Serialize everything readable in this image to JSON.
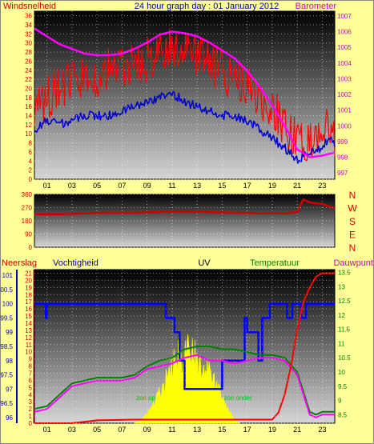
{
  "header": {
    "title": "24 hour graph day : 01 January 2012",
    "left_label": "Windsnelheid",
    "right_label": "Barometer"
  },
  "colors": {
    "background": "#ffff99",
    "wind": "#ff0000",
    "gust": "#0000cc",
    "baro": "#ff00ff",
    "direction": "#cc0000",
    "rain": "#ff0000",
    "humidity": "#0000ff",
    "uv": "#ffff00",
    "temperature": "#008000",
    "dewpoint": "#ff00ff"
  },
  "chart_data": [
    {
      "type": "line",
      "panel": "wind-baro",
      "x_ticks": [
        "01",
        "03",
        "05",
        "07",
        "09",
        "11",
        "13",
        "15",
        "17",
        "19",
        "21",
        "23"
      ],
      "xlim": [
        0,
        24
      ],
      "y_left": {
        "label": "Windsnelheid",
        "lim": [
          0,
          37
        ],
        "ticks": [
          0,
          2,
          4,
          6,
          8,
          10,
          12,
          14,
          16,
          18,
          20,
          22,
          24,
          26,
          28,
          30,
          32,
          34,
          36
        ]
      },
      "y_right": {
        "label": "Barometer",
        "lim": [
          996.6,
          1007.3
        ],
        "ticks": [
          997,
          998,
          999,
          1000,
          1001,
          1002,
          1003,
          1004,
          1005,
          1006,
          1007
        ]
      },
      "series": [
        {
          "key": "wind",
          "axis": "left",
          "color": "#ff0000",
          "jitter": 5,
          "x": [
            0,
            1,
            2,
            3,
            4,
            5,
            6,
            7,
            8,
            9,
            10,
            11,
            12,
            13,
            14,
            15,
            16,
            17,
            18,
            19,
            20,
            21,
            22,
            23,
            23.5,
            24
          ],
          "y": [
            14,
            18,
            20,
            21,
            22,
            23,
            24,
            25,
            25,
            26,
            28,
            29,
            28,
            27,
            25,
            24,
            22,
            21,
            18,
            16,
            12,
            8,
            9,
            10,
            11,
            10
          ]
        },
        {
          "key": "gust",
          "axis": "left",
          "color": "#0000cc",
          "jitter": 1,
          "x": [
            0,
            1,
            2,
            3,
            4,
            5,
            6,
            7,
            8,
            9,
            10,
            11,
            12,
            13,
            14,
            15,
            16,
            17,
            18,
            19,
            20,
            21,
            22,
            23,
            23.5,
            24
          ],
          "y": [
            11,
            13,
            12,
            13,
            14,
            14,
            14,
            15,
            16,
            17,
            18,
            19,
            17,
            16,
            15,
            14,
            14,
            13,
            11,
            9,
            7,
            4,
            6,
            7,
            9,
            8
          ]
        },
        {
          "key": "baro",
          "axis": "right",
          "color": "#ff00ff",
          "jitter": 0,
          "x": [
            0,
            1,
            2,
            3,
            4,
            5,
            6,
            7,
            8,
            9,
            10,
            11,
            12,
            13,
            14,
            15,
            16,
            17,
            18,
            19,
            20,
            21,
            22,
            23,
            23.5,
            24
          ],
          "y": [
            1006.2,
            1005.7,
            1005.2,
            1004.9,
            1004.6,
            1004.5,
            1004.5,
            1004.6,
            1004.9,
            1005.3,
            1005.8,
            1006.0,
            1005.9,
            1005.7,
            1005.3,
            1004.8,
            1004.3,
            1003.5,
            1002.5,
            1001.3,
            1000.0,
            998.5,
            998.0,
            998.1,
            998.2,
            998.3
          ]
        }
      ]
    },
    {
      "type": "line",
      "panel": "direction",
      "x_ticks": [
        "01",
        "03",
        "05",
        "07",
        "09",
        "11",
        "13",
        "15",
        "17",
        "19",
        "21",
        "23"
      ],
      "xlim": [
        0,
        24
      ],
      "y_left": {
        "lim": [
          0,
          360
        ],
        "ticks": [
          0,
          90,
          180,
          270,
          360
        ]
      },
      "y_right_labels": [
        "N",
        "W",
        "S",
        "E",
        "N"
      ],
      "series": [
        {
          "key": "direction",
          "color": "#cc0000",
          "x": [
            0,
            2,
            4,
            6,
            8,
            10,
            12,
            14,
            16,
            18,
            20,
            21,
            21.5,
            22,
            23,
            24
          ],
          "y": [
            225,
            225,
            230,
            235,
            235,
            240,
            245,
            240,
            235,
            230,
            230,
            240,
            325,
            305,
            295,
            265
          ]
        }
      ]
    },
    {
      "type": "line",
      "panel": "climate",
      "x_ticks": [
        "01",
        "03",
        "05",
        "07",
        "09",
        "11",
        "13",
        "15",
        "17",
        "19",
        "21",
        "23"
      ],
      "xlim": [
        0,
        24
      ],
      "labels": [
        "Neerslag",
        "Vochtigheid",
        "UV",
        "Temperatuur",
        "Dauwpunt"
      ],
      "annotations": [
        "zon op",
        "zon onder"
      ],
      "y_rain": {
        "lim": [
          0,
          21.5
        ],
        "ticks": [
          0,
          1,
          2,
          3,
          4,
          5,
          6,
          7,
          8,
          9,
          10,
          11,
          12,
          13,
          14,
          15,
          16,
          17,
          18,
          19,
          20,
          21
        ]
      },
      "y_hum": {
        "lim": [
          95.8,
          101.2
        ],
        "ticks": [
          96,
          96.5,
          97,
          97.5,
          98,
          98.5,
          99,
          99.5,
          100,
          100.5,
          101
        ]
      },
      "y_temp": {
        "lim": [
          8.2,
          13.6
        ],
        "ticks": [
          8.5,
          9,
          9.5,
          10,
          10.5,
          11,
          11.5,
          12,
          12.5,
          13,
          13.5
        ]
      },
      "series": [
        {
          "key": "rain",
          "axis": "rain",
          "color": "#ff0000",
          "x": [
            0,
            3,
            4,
            5,
            8,
            12,
            16,
            18,
            19,
            19.5,
            20,
            20.5,
            21,
            21.5,
            22,
            22.5,
            23,
            24
          ],
          "y": [
            0,
            0,
            0.2,
            0.4,
            0.5,
            0.5,
            0.5,
            0.5,
            0.5,
            1.5,
            4,
            8,
            13,
            17,
            19,
            20.5,
            21,
            21
          ]
        },
        {
          "key": "humidity",
          "axis": "hum",
          "color": "#0000ff",
          "step": true,
          "x": [
            0,
            0.9,
            0.9,
            1.0,
            1.0,
            10.5,
            10.5,
            11.2,
            11.2,
            11.6,
            11.6,
            12.0,
            12.0,
            15.0,
            15.0,
            16.8,
            16.8,
            17.0,
            17.0,
            17.9,
            17.9,
            18.2,
            18.2,
            18.8,
            18.8,
            19.1,
            19.1,
            20.2,
            20.2,
            20.6,
            20.6,
            21.3,
            21.3,
            21.7,
            21.7,
            22.5,
            22.5,
            24.0
          ],
          "y": [
            100,
            100,
            99.5,
            99.5,
            100,
            100,
            99.5,
            99.5,
            99.0,
            99.0,
            98.0,
            98.0,
            97.0,
            97.0,
            98.0,
            98.0,
            99.5,
            99.5,
            99.0,
            99.0,
            98.0,
            98.0,
            99.5,
            99.5,
            100,
            100,
            100,
            100,
            99.5,
            99.5,
            100,
            100,
            99.5,
            99.5,
            100,
            100,
            100,
            100
          ]
        },
        {
          "key": "uv",
          "axis": "rain",
          "color": "#ffff00",
          "fill": true,
          "x": [
            8,
            8.5,
            9,
            9.5,
            10,
            10.5,
            11,
            11.3,
            11.6,
            12,
            12.5,
            13,
            13.5,
            14,
            14.5,
            15,
            15.5,
            16,
            16.4
          ],
          "y": [
            0,
            0.5,
            1.5,
            3,
            5,
            7,
            9,
            12,
            10,
            11,
            13,
            10,
            9,
            8,
            6,
            4,
            2,
            0.5,
            0
          ]
        },
        {
          "key": "temperature",
          "axis": "temp",
          "color": "#008000",
          "x": [
            0,
            1,
            2,
            3,
            4,
            5,
            6,
            7,
            8,
            9,
            10,
            11,
            12,
            13,
            14,
            15,
            16,
            17,
            18,
            19,
            20,
            21,
            22,
            22.5,
            23,
            24
          ],
          "y": [
            8.7,
            8.8,
            9.2,
            9.6,
            9.7,
            9.8,
            9.8,
            9.8,
            9.9,
            10.2,
            10.4,
            10.5,
            10.8,
            10.9,
            10.9,
            10.8,
            10.8,
            10.7,
            10.6,
            10.6,
            10.5,
            10.0,
            8.6,
            8.5,
            8.6,
            8.6
          ]
        },
        {
          "key": "dewpoint",
          "axis": "temp",
          "color": "#ff00ff",
          "x": [
            0,
            1,
            2,
            3,
            4,
            5,
            6,
            7,
            8,
            9,
            10,
            11,
            12,
            13,
            14,
            15,
            16,
            17,
            18,
            19,
            20,
            21,
            22,
            22.5,
            23,
            24
          ],
          "y": [
            8.6,
            8.7,
            9.1,
            9.5,
            9.6,
            9.7,
            9.7,
            9.7,
            9.8,
            10.1,
            10.2,
            10.3,
            10.5,
            10.6,
            10.4,
            10.4,
            10.3,
            10.4,
            10.5,
            10.5,
            10.4,
            9.9,
            8.5,
            8.4,
            8.5,
            8.5
          ]
        }
      ]
    }
  ]
}
